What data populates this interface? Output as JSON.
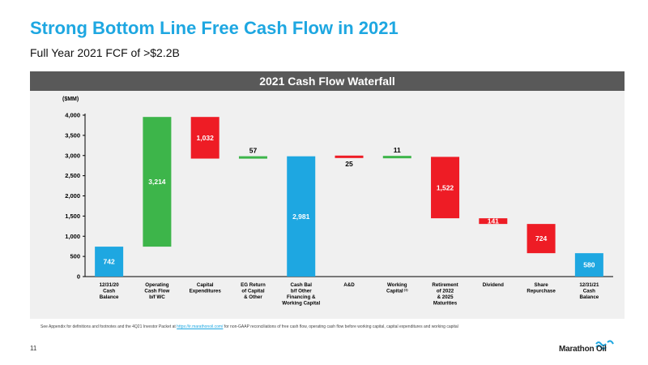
{
  "header": {
    "title": "Strong Bottom Line Free Cash Flow in 2021",
    "subtitle": "Full Year 2021 FCF of >$2.2B"
  },
  "panel": {
    "title": "2021 Cash Flow Waterfall"
  },
  "colors": {
    "blue": "#1ea7e1",
    "green": "#3db54a",
    "red": "#ee1c25",
    "title": "#1ea7e1",
    "panel_header": "#595959"
  },
  "chart_data": {
    "type": "bar",
    "subtype": "waterfall",
    "title": "2021 Cash Flow Waterfall",
    "ylabel": "($MM)",
    "ylim": [
      0,
      4000
    ],
    "yticks": [
      "0",
      "500",
      "1,000",
      "1,500",
      "2,000",
      "2,500",
      "3,000",
      "3,500",
      "4,000"
    ],
    "grid": false,
    "bars": [
      {
        "category": [
          "12/31/20",
          "Cash",
          "Balance"
        ],
        "start": 0,
        "end": 742,
        "label": "742",
        "kind": "total",
        "label_pos": "inside"
      },
      {
        "category": [
          "Operating",
          "Cash Flow",
          "b/f WC"
        ],
        "start": 742,
        "end": 3956,
        "label": "3,214",
        "kind": "increase",
        "label_pos": "inside"
      },
      {
        "category": [
          "Capital",
          "Expenditures"
        ],
        "start": 3956,
        "end": 2924,
        "label": "1,032",
        "kind": "decrease",
        "label_pos": "inside"
      },
      {
        "category": [
          "EG Return",
          "of Capital",
          "& Other"
        ],
        "start": 2924,
        "end": 2981,
        "label": "57",
        "kind": "increase",
        "label_pos": "above"
      },
      {
        "category": [
          "Cash Bal",
          "b/f Other",
          "Financing &",
          "Working Capital"
        ],
        "start": 0,
        "end": 2981,
        "label": "2,981",
        "kind": "total",
        "label_pos": "inside"
      },
      {
        "category": [
          "A&D"
        ],
        "start": 2981,
        "end": 2956,
        "label": "25",
        "kind": "decrease",
        "label_pos": "below"
      },
      {
        "category": [
          "Working",
          "Capital"
        ],
        "sup": "(1)",
        "start": 2956,
        "end": 2967,
        "label": "11",
        "kind": "increase",
        "label_pos": "above"
      },
      {
        "category": [
          "Retirement",
          "of 2022",
          "& 2025",
          "Maturities"
        ],
        "start": 2967,
        "end": 1445,
        "label": "1,522",
        "kind": "decrease",
        "label_pos": "inside"
      },
      {
        "category": [
          "Dividend"
        ],
        "start": 1445,
        "end": 1304,
        "label": "141",
        "kind": "decrease",
        "label_pos": "inside"
      },
      {
        "category": [
          "Share",
          "Repurchase"
        ],
        "start": 1304,
        "end": 580,
        "label": "724",
        "kind": "decrease",
        "label_pos": "inside"
      },
      {
        "category": [
          "12/31/21",
          "Cash",
          "Balance"
        ],
        "start": 0,
        "end": 580,
        "label": "580",
        "kind": "total",
        "label_pos": "inside"
      }
    ]
  },
  "footer": {
    "note_before": "See Appendix for definitions and footnotes and the 4Q21 Investor Packet at ",
    "note_link": "https://ir.marathonoil.com/",
    "note_after": " for non-GAAP reconciliations of free cash flow, operating cash flow before working capital, capital expenditures and working capital",
    "page_number": "11",
    "logo_text": "Marathon Oil"
  }
}
